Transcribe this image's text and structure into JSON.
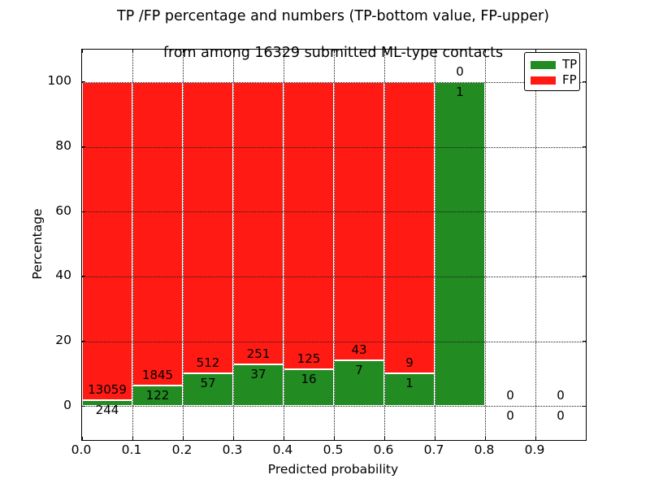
{
  "figure": {
    "title_line1": "TP /FP percentage and numbers (TP-bottom value, FP-upper)",
    "title_line2": "from among 16329 submitted ML-type contacts"
  },
  "chart_data": {
    "type": "bar",
    "stacked": true,
    "title": "TP /FP percentage and numbers (TP-bottom value, FP-upper)\nfrom among 16329 submitted ML-type contacts",
    "xlabel": "Predicted probability",
    "ylabel": "Percentage",
    "total_contacts": 16329,
    "xlim": [
      0.0,
      1.0
    ],
    "ylim": [
      -10.5,
      110.0
    ],
    "x_ticks": [
      "0.0",
      "0.1",
      "0.2",
      "0.3",
      "0.4",
      "0.5",
      "0.6",
      "0.7",
      "0.8",
      "0.9"
    ],
    "y_ticks": [
      0,
      20,
      40,
      60,
      80,
      100
    ],
    "grid": "dotted, both axes, drawn above bars",
    "legend_position": "upper right",
    "bin_width": 0.1,
    "categories": [
      0.0,
      0.1,
      0.2,
      0.3,
      0.4,
      0.5,
      0.6,
      0.7,
      0.8,
      0.9
    ],
    "series": [
      {
        "name": "TP",
        "color": "#228b22",
        "counts": [
          244,
          122,
          57,
          37,
          16,
          7,
          1,
          1,
          0,
          0
        ],
        "pct": [
          1.83,
          6.2,
          10.02,
          12.85,
          11.35,
          14.0,
          10.0,
          100.0,
          0.0,
          0.0
        ]
      },
      {
        "name": "FP",
        "color": "#ff1a13",
        "counts": [
          13059,
          1845,
          512,
          251,
          125,
          43,
          9,
          0,
          0,
          0
        ],
        "pct": [
          98.17,
          93.8,
          89.98,
          87.15,
          88.65,
          86.0,
          90.0,
          0.0,
          0.0,
          0.0
        ]
      }
    ],
    "bar_edge_color": "#ffffff",
    "annotation_rule": "FP count printed just above green bar top, TP count just below green bar top"
  }
}
